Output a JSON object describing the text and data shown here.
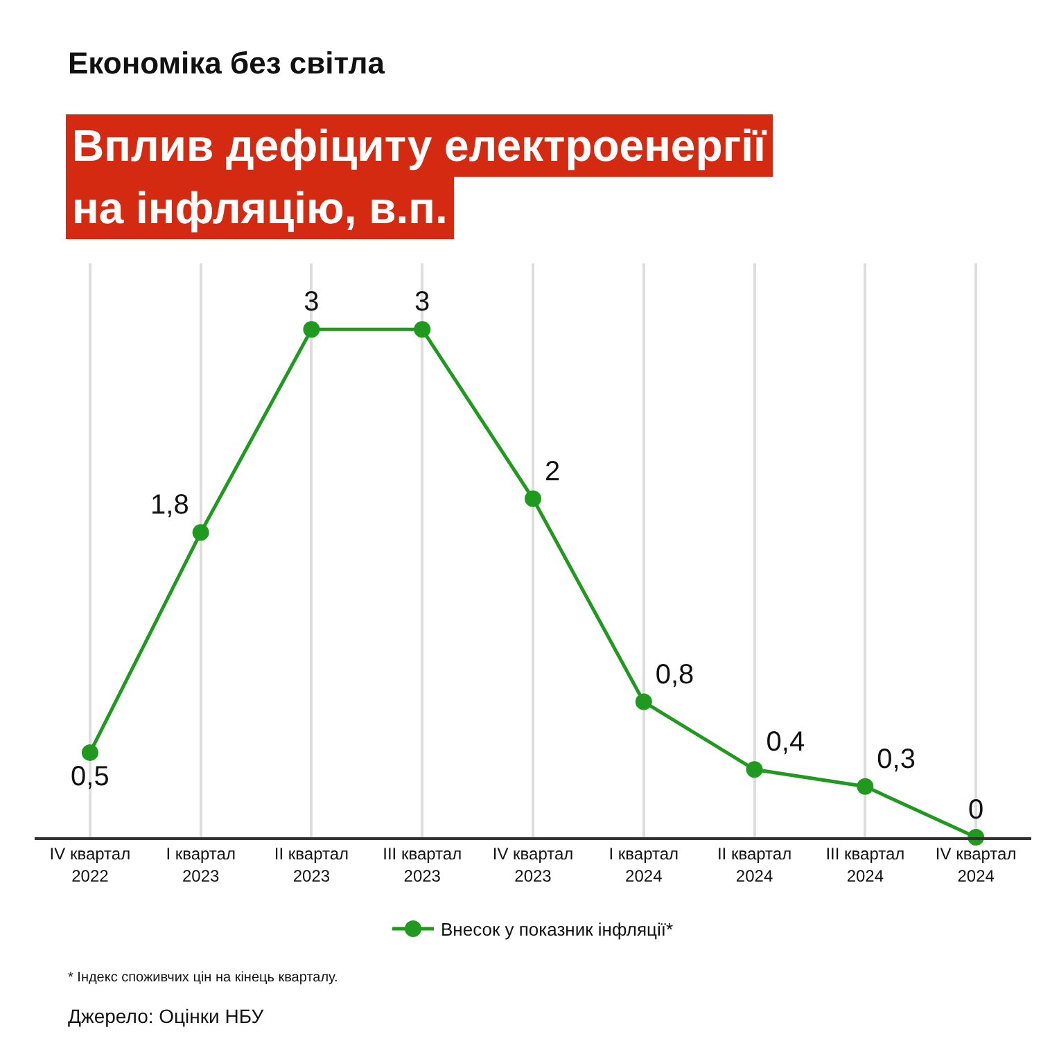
{
  "chart_data": {
    "type": "line",
    "title": "Вплив дефіциту електроенергії на інфляцію, в.п.",
    "subtitle": "Економіка без світла",
    "categories": [
      "IV квартал 2022",
      "I квартал 2023",
      "II квартал 2023",
      "III квартал 2023",
      "IV квартал 2023",
      "I квартал 2024",
      "II квартал 2024",
      "III квартал 2024",
      "IV квартал 2024"
    ],
    "series": [
      {
        "name": "Внесок у показник інфляції*",
        "color": "#1f9a1f",
        "values": [
          0.5,
          1.8,
          3,
          3,
          2,
          0.8,
          0.4,
          0.3,
          0
        ],
        "value_labels": [
          "0,5",
          "1,8",
          "3",
          "3",
          "2",
          "0,8",
          "0,4",
          "0,3",
          "0"
        ]
      }
    ],
    "marker": "circle",
    "line_style": "solid",
    "grid": "x",
    "legend": "bottom",
    "tick_labels": "x",
    "annotations": [
      "* Індекс споживчих цін на кінець кварталу.",
      "Джерело: Оцінки НБУ"
    ]
  }
}
